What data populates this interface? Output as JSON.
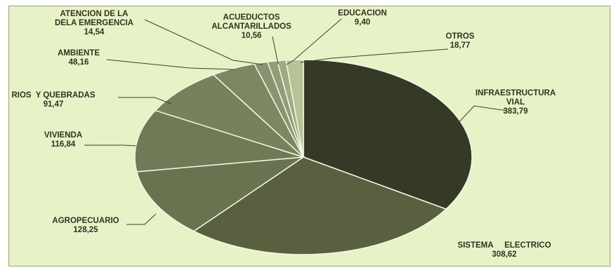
{
  "chart_data": {
    "type": "pie",
    "slices": [
      {
        "label": [
          "INFRAESTRUCTURA",
          "VIAL"
        ],
        "value_text": "383,79",
        "value": 383.79,
        "color": "#343a26"
      },
      {
        "label": [
          "SISTEMA     ELECTRICO"
        ],
        "value_text": "308,62",
        "value": 308.62,
        "color": "#58603f"
      },
      {
        "label": [
          "AGROPECUARIO"
        ],
        "value_text": "128,25",
        "value": 128.25,
        "color": "#697350"
      },
      {
        "label": [
          "VIVIENDA"
        ],
        "value_text": "116,84",
        "value": 116.84,
        "color": "#6f7a56"
      },
      {
        "label": [
          "RIOS  Y QUEBRADAS"
        ],
        "value_text": "91,47",
        "value": 91.47,
        "color": "#77825c"
      },
      {
        "label": [
          "AMBIENTE"
        ],
        "value_text": "48,16",
        "value": 48.16,
        "color": "#7d8862"
      },
      {
        "label": [
          "ATENCION DE LA",
          "DELA EMERGENCIA"
        ],
        "value_text": "14,54",
        "value": 14.54,
        "color": "#889470"
      },
      {
        "label": [
          "ACUEDUCTOS",
          "ALCANTARILLADOS"
        ],
        "value_text": "10,56",
        "value": 10.56,
        "color": "#919d78"
      },
      {
        "label": [
          "EDUCACION"
        ],
        "value_text": "9,40",
        "value": 9.4,
        "color": "#a0ab84"
      },
      {
        "label": [
          "OTROS"
        ],
        "value_text": "18,77",
        "value": 18.77,
        "color": "#b8c298"
      }
    ]
  }
}
